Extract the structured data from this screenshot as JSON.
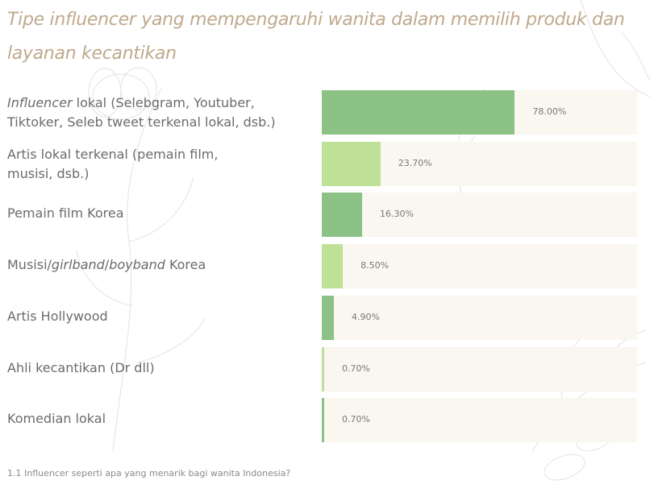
{
  "title": "Tipe influencer yang mempengaruhi wanita dalam memilih produk dan layanan kecantikan",
  "footnote": "1.1 Influencer seperti apa yang menarik bagi wanita Indonesia?",
  "colors": {
    "dark_green": "#8dc286",
    "light_green": "#bfe097",
    "track": "#faf6f0",
    "title": "#bfa98c"
  },
  "chart_data": {
    "type": "bar",
    "orientation": "horizontal",
    "title": "Tipe influencer yang mempengaruhi wanita dalam memilih produk dan layanan kecantikan",
    "categories": [
      "Influencer lokal (Selebgram, Youtuber, Tiktoker, Seleb tweet terkenal lokal, dsb.)",
      "Artis lokal terkenal (pemain film, musisi, dsb.)",
      "Pemain film Korea",
      "Musisi/girlband/boyband Korea",
      "Artis Hollywood",
      "Ahli kecantikan (Dr dll)",
      "Komedian lokal"
    ],
    "values": [
      78.0,
      23.7,
      16.3,
      8.5,
      4.9,
      0.7,
      0.7
    ],
    "value_labels": [
      "78.00%",
      "23.70%",
      "16.30%",
      "8.50%",
      "4.90%",
      "0.70%",
      "0.70%"
    ],
    "xlim": [
      0,
      100
    ],
    "grid": false,
    "legend": "none"
  },
  "rows": [
    {
      "label_parts": [
        {
          "t": "Influencer",
          "i": true
        },
        {
          "t": " lokal (Selebgram, Youtuber,\nTiktoker, Seleb tweet terkenal lokal, dsb.)",
          "i": false
        }
      ]
    },
    {
      "label_parts": [
        {
          "t": "Artis lokal terkenal (pemain film,\nmusisi, dsb.)",
          "i": false
        }
      ]
    },
    {
      "label_parts": [
        {
          "t": "Pemain film Korea",
          "i": false
        }
      ]
    },
    {
      "label_parts": [
        {
          "t": "Musisi/",
          "i": false
        },
        {
          "t": "girlband",
          "i": true
        },
        {
          "t": "/",
          "i": false
        },
        {
          "t": "boyband",
          "i": true
        },
        {
          "t": " Korea",
          "i": false
        }
      ]
    },
    {
      "label_parts": [
        {
          "t": "Artis Hollywood",
          "i": false
        }
      ]
    },
    {
      "label_parts": [
        {
          "t": "Ahli kecantikan (Dr dll)",
          "i": false
        }
      ]
    },
    {
      "label_parts": [
        {
          "t": "Komedian lokal",
          "i": false
        }
      ]
    }
  ]
}
